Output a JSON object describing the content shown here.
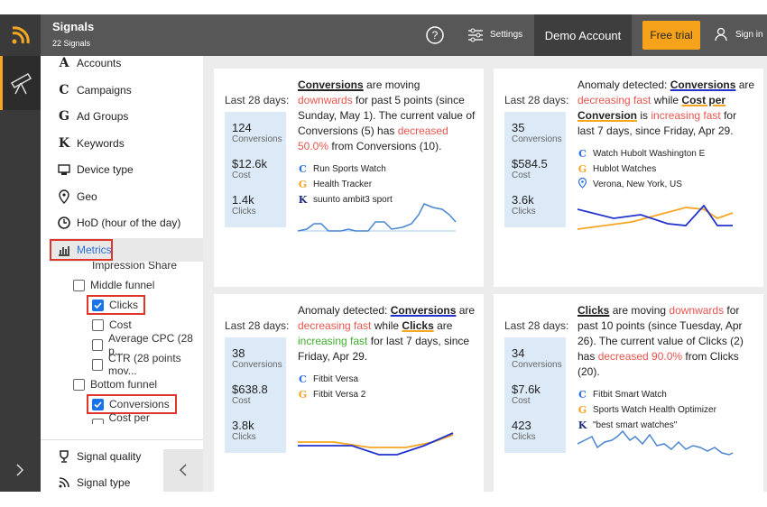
{
  "header": {
    "title": "Signals",
    "subtitle": "22 Signals",
    "settings": "Settings",
    "account": "Demo Account",
    "trial": "Free trial",
    "signin": "Sign in"
  },
  "sidebar": {
    "items": [
      {
        "icon": "A",
        "label": "Accounts"
      },
      {
        "icon": "C",
        "label": "Campaigns"
      },
      {
        "icon": "G",
        "label": "Ad Groups"
      },
      {
        "icon": "K",
        "label": "Keywords"
      },
      {
        "label": "Device type"
      },
      {
        "label": "Geo"
      },
      {
        "label": "HoD (hour of the day)"
      },
      {
        "label": "Metrics",
        "selected": true
      }
    ],
    "tree": [
      {
        "label": "Impression Share",
        "level": 2
      },
      {
        "label": "Middle funnel",
        "level": 1,
        "checked": false
      },
      {
        "label": "Clicks",
        "level": 2,
        "checked": true
      },
      {
        "label": "Cost",
        "level": 2,
        "checked": false
      },
      {
        "label": "Average CPC (28 p...",
        "level": 2,
        "checked": false
      },
      {
        "label": "CTR (28 points mov...",
        "level": 2,
        "checked": false
      },
      {
        "label": "Bottom funnel",
        "level": 1,
        "checked": false
      },
      {
        "label": "Conversions",
        "level": 2,
        "checked": true
      },
      {
        "label": "Cost per Conversion",
        "level": 2,
        "checked": false
      }
    ],
    "footer": [
      "Signal quality",
      "Signal type"
    ]
  },
  "cards": [
    {
      "period": "Last 28 days:",
      "stats": [
        {
          "value": "124",
          "label": "Conversions"
        },
        {
          "value": "$12.6k",
          "label": "Cost"
        },
        {
          "value": "1.4k",
          "label": "Clicks"
        }
      ],
      "message": [
        {
          "text": "Conversions",
          "style": "link",
          "underline": "#222222"
        },
        {
          "text": " are moving "
        },
        {
          "text": "downwards",
          "style": "red"
        },
        {
          "text": " for past 5 points (since Sunday, May 1). The current value of Conversions (5) has "
        },
        {
          "text": "decreased 50.0%",
          "style": "red"
        },
        {
          "text": " from Conversions (10)."
        }
      ],
      "items": [
        {
          "icon": "C",
          "text": "Run Sports Watch"
        },
        {
          "icon": "G",
          "text": "Health Tracker"
        },
        {
          "icon": "K",
          "text": "suunto ambit3 sport"
        }
      ]
    },
    {
      "period": "Last 28 days:",
      "stats": [
        {
          "value": "35",
          "label": "Conversions"
        },
        {
          "value": "$584.5",
          "label": "Cost"
        },
        {
          "value": "3.6k",
          "label": "Clicks"
        }
      ],
      "message": [
        {
          "text": "Anomaly detected: "
        },
        {
          "text": "Conversions",
          "style": "link",
          "underline": "#2233cc"
        },
        {
          "text": " are "
        },
        {
          "text": "decreasing fast",
          "style": "red"
        },
        {
          "text": " while "
        },
        {
          "text": "Cost per Conversion",
          "style": "link",
          "underline": "#f5a623"
        },
        {
          "text": " is "
        },
        {
          "text": "increasing fast",
          "style": "red"
        },
        {
          "text": " for last 7 days, since Friday, Apr 29."
        }
      ],
      "items": [
        {
          "icon": "C",
          "text": "Watch Hubolt Washington E"
        },
        {
          "icon": "G",
          "text": "Hublot Watches"
        },
        {
          "text": "Verona, New York, US"
        }
      ]
    },
    {
      "period": "Last 28 days:",
      "stats": [
        {
          "value": "38",
          "label": "Conversions"
        },
        {
          "value": "$638.8",
          "label": "Cost"
        },
        {
          "value": "3.8k",
          "label": "Clicks"
        }
      ],
      "message": [
        {
          "text": "Anomaly detected: "
        },
        {
          "text": "Conversions",
          "style": "link",
          "underline": "#2233cc"
        },
        {
          "text": " are "
        },
        {
          "text": "decreasing fast",
          "style": "red"
        },
        {
          "text": " while "
        },
        {
          "text": "Clicks",
          "style": "link",
          "underline": "#f5a623"
        },
        {
          "text": " are "
        },
        {
          "text": "increasing fast",
          "style": "green"
        },
        {
          "text": " for last 7 days, since Friday, Apr 29."
        }
      ],
      "items": [
        {
          "icon": "C",
          "text": "Fitbit Versa"
        },
        {
          "icon": "G",
          "text": "Fitbit Versa 2"
        }
      ]
    },
    {
      "period": "Last 28 days:",
      "stats": [
        {
          "value": "34",
          "label": "Conversions"
        },
        {
          "value": "$7.6k",
          "label": "Cost"
        },
        {
          "value": "423",
          "label": "Clicks"
        }
      ],
      "message": [
        {
          "text": "Clicks",
          "style": "link",
          "underline": "#222222"
        },
        {
          "text": " are moving "
        },
        {
          "text": "downwards",
          "style": "red"
        },
        {
          "text": " for past 10 points (since Tuesday, Apr 26). The current value of Clicks (2) has "
        },
        {
          "text": "decreased 90.0%",
          "style": "red"
        },
        {
          "text": " from Clicks (20)."
        }
      ],
      "items": [
        {
          "icon": "C",
          "text": "Fitbit Smart Watch"
        },
        {
          "icon": "G",
          "text": "Sports Watch Health Optimizer"
        },
        {
          "icon": "K",
          "text": "\"best smart watches\""
        }
      ]
    }
  ]
}
